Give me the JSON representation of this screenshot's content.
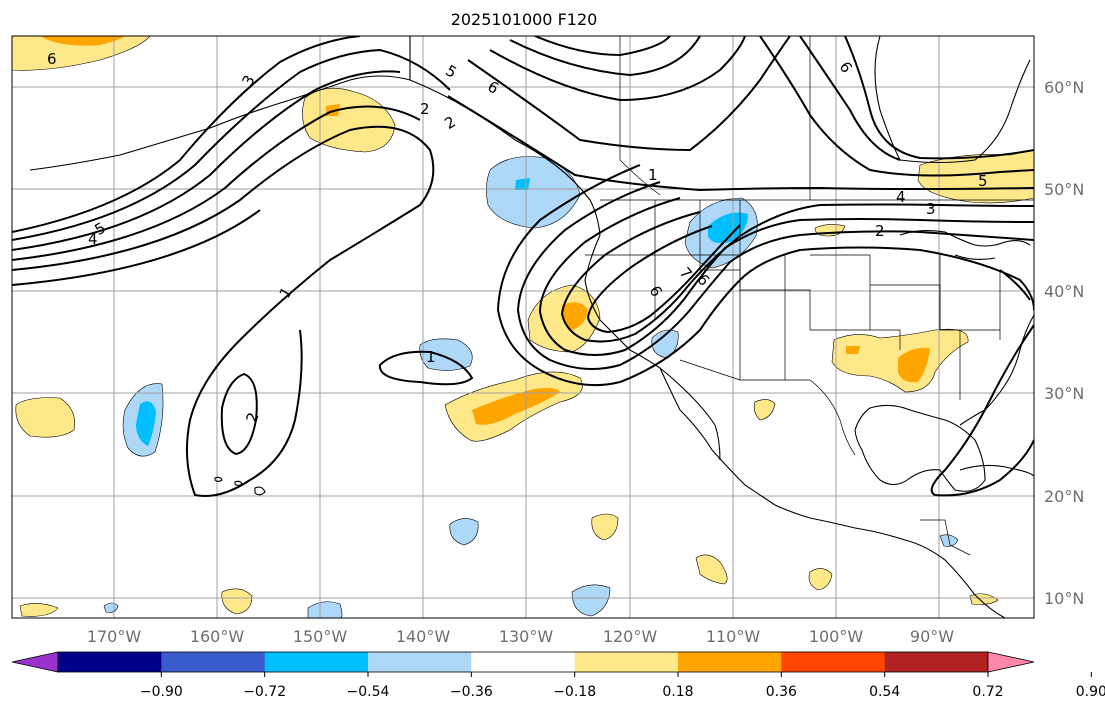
{
  "title": "2025101000 F120",
  "map": {
    "projection": "plate-carree",
    "lon_range": [
      -180,
      -82
    ],
    "lat_range": [
      8,
      65
    ],
    "grid": true,
    "lon_ticks": [
      "170°W",
      "160°W",
      "150°W",
      "140°W",
      "130°W",
      "120°W",
      "110°W",
      "100°W",
      "90°W"
    ],
    "lat_ticks": [
      "60°N",
      "50°N",
      "40°N",
      "30°N",
      "20°N",
      "10°N"
    ],
    "contour_labels": [
      "6",
      "3",
      "5",
      "6",
      "5",
      "4",
      "2",
      "1",
      "1",
      "2",
      "6",
      "5",
      "4",
      "3",
      "2",
      "2",
      "1",
      "6",
      "7",
      "6"
    ]
  },
  "colorbar": {
    "extend": "both",
    "ticks": [
      "−0.90",
      "−0.72",
      "−0.54",
      "−0.36",
      "−0.18",
      "0.18",
      "0.36",
      "0.54",
      "0.72",
      "0.90"
    ],
    "colors": [
      "#9932cc",
      "#00008b",
      "#3a5bcc",
      "#00bfff",
      "#add8f7",
      "#ffffff",
      "#ffe88a",
      "#ffa500",
      "#ff4500",
      "#b22222",
      "#ff88aa"
    ]
  },
  "colors": {
    "land_outline": "#000000",
    "contour": "#000000",
    "grid": "#a0a0a0"
  }
}
